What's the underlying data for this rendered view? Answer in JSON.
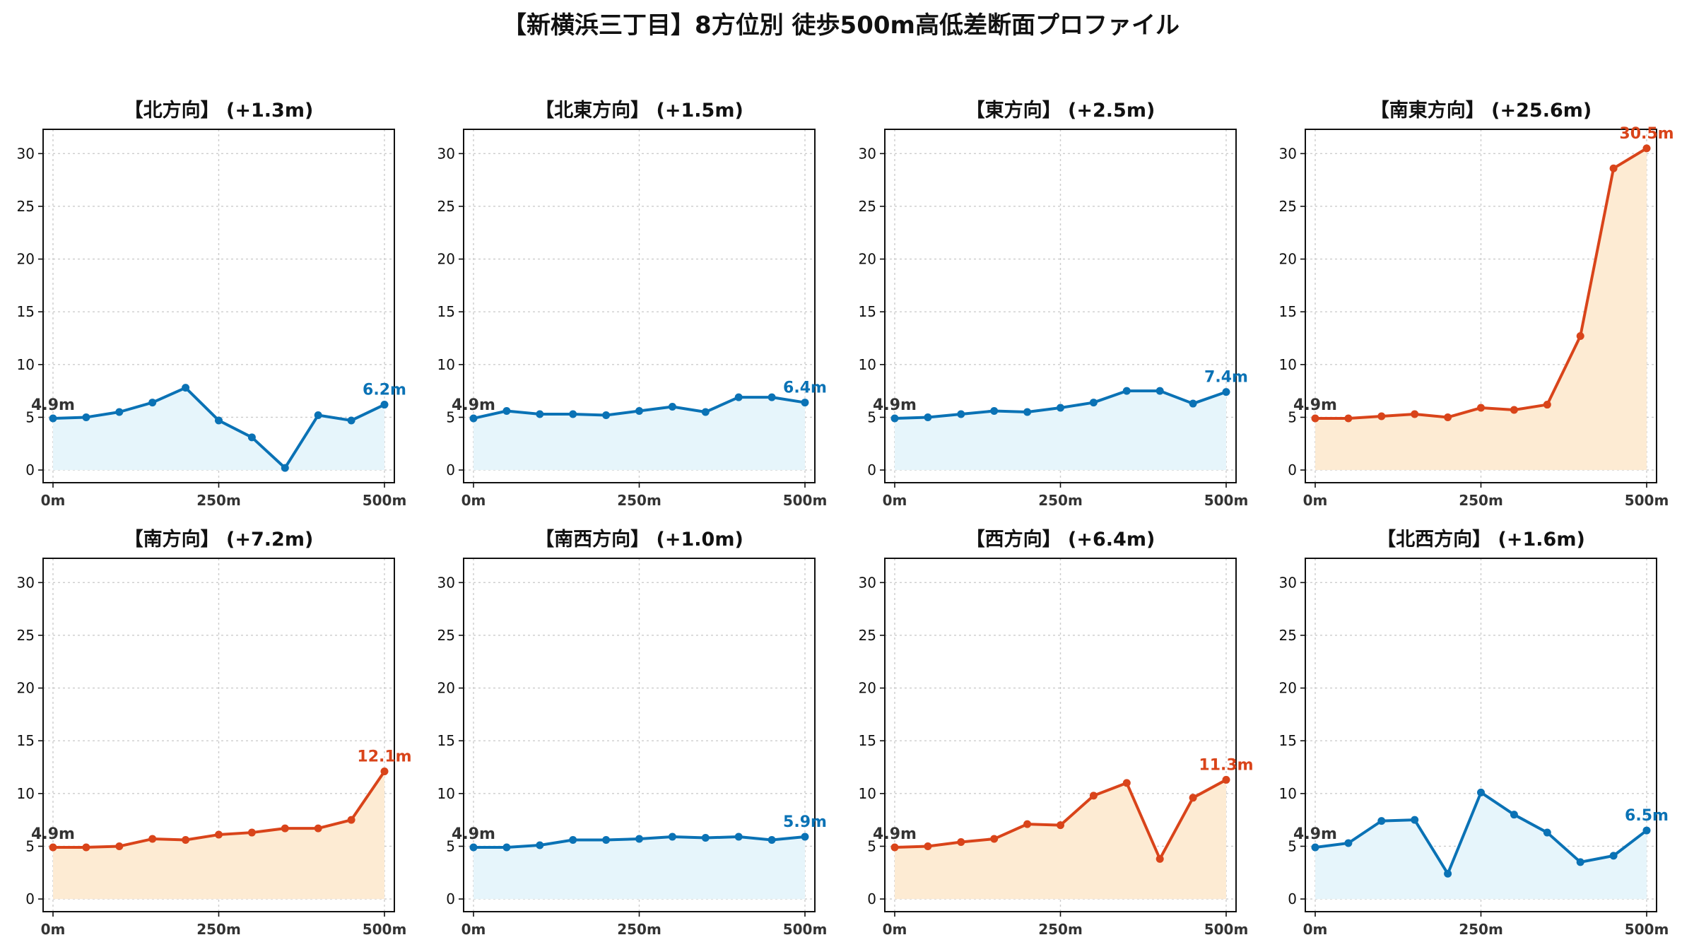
{
  "title": "【新横浜三丁目】8方位別 徒歩500m高低差断面プロファイル",
  "colors": {
    "blue": "#0a72b5",
    "red": "#d9441a",
    "blue_fill": "#e6f5fb",
    "red_fill": "#fdebd3"
  },
  "chart_data": [
    {
      "type": "area",
      "title": "【北方向】 (+1.3m)",
      "color": "blue",
      "x": [
        0,
        50,
        100,
        150,
        200,
        250,
        300,
        350,
        400,
        450,
        500
      ],
      "values": [
        4.9,
        5.0,
        5.5,
        6.4,
        7.8,
        4.7,
        3.1,
        0.2,
        5.2,
        4.7,
        6.2
      ],
      "start_label": "4.9m",
      "end_label": "6.2m",
      "xticks": [
        "0m",
        "250m",
        "500m"
      ],
      "yticks": [
        "0",
        "5",
        "10",
        "15",
        "20",
        "25",
        "30"
      ],
      "ylim": [
        -1.2,
        32.3
      ]
    },
    {
      "type": "area",
      "title": "【北東方向】 (+1.5m)",
      "color": "blue",
      "x": [
        0,
        50,
        100,
        150,
        200,
        250,
        300,
        350,
        400,
        450,
        500
      ],
      "values": [
        4.9,
        5.6,
        5.3,
        5.3,
        5.2,
        5.6,
        6.0,
        5.5,
        6.9,
        6.9,
        6.4
      ],
      "start_label": "4.9m",
      "end_label": "6.4m",
      "xticks": [
        "0m",
        "250m",
        "500m"
      ],
      "yticks": [
        "0",
        "5",
        "10",
        "15",
        "20",
        "25",
        "30"
      ],
      "ylim": [
        -1.2,
        32.3
      ]
    },
    {
      "type": "area",
      "title": "【東方向】 (+2.5m)",
      "color": "blue",
      "x": [
        0,
        50,
        100,
        150,
        200,
        250,
        300,
        350,
        400,
        450,
        500
      ],
      "values": [
        4.9,
        5.0,
        5.3,
        5.6,
        5.5,
        5.9,
        6.4,
        7.5,
        7.5,
        6.3,
        7.4
      ],
      "start_label": "4.9m",
      "end_label": "7.4m",
      "xticks": [
        "0m",
        "250m",
        "500m"
      ],
      "yticks": [
        "0",
        "5",
        "10",
        "15",
        "20",
        "25",
        "30"
      ],
      "ylim": [
        -1.2,
        32.3
      ]
    },
    {
      "type": "area",
      "title": "【南東方向】 (+25.6m)",
      "color": "red",
      "x": [
        0,
        50,
        100,
        150,
        200,
        250,
        300,
        350,
        400,
        450,
        500
      ],
      "values": [
        4.9,
        4.9,
        5.1,
        5.3,
        5.0,
        5.9,
        5.7,
        6.2,
        12.7,
        28.6,
        30.5
      ],
      "start_label": "4.9m",
      "end_label": "30.5m",
      "xticks": [
        "0m",
        "250m",
        "500m"
      ],
      "yticks": [
        "0",
        "5",
        "10",
        "15",
        "20",
        "25",
        "30"
      ],
      "ylim": [
        -1.2,
        32.3
      ]
    },
    {
      "type": "area",
      "title": "【南方向】 (+7.2m)",
      "color": "red",
      "x": [
        0,
        50,
        100,
        150,
        200,
        250,
        300,
        350,
        400,
        450,
        500
      ],
      "values": [
        4.9,
        4.9,
        5.0,
        5.7,
        5.6,
        6.1,
        6.3,
        6.7,
        6.7,
        7.5,
        12.1
      ],
      "start_label": "4.9m",
      "end_label": "12.1m",
      "xticks": [
        "0m",
        "250m",
        "500m"
      ],
      "yticks": [
        "0",
        "5",
        "10",
        "15",
        "20",
        "25",
        "30"
      ],
      "ylim": [
        -1.2,
        32.3
      ]
    },
    {
      "type": "area",
      "title": "【南西方向】 (+1.0m)",
      "color": "blue",
      "x": [
        0,
        50,
        100,
        150,
        200,
        250,
        300,
        350,
        400,
        450,
        500
      ],
      "values": [
        4.9,
        4.9,
        5.1,
        5.6,
        5.6,
        5.7,
        5.9,
        5.8,
        5.9,
        5.6,
        5.9
      ],
      "start_label": "4.9m",
      "end_label": "5.9m",
      "xticks": [
        "0m",
        "250m",
        "500m"
      ],
      "yticks": [
        "0",
        "5",
        "10",
        "15",
        "20",
        "25",
        "30"
      ],
      "ylim": [
        -1.2,
        32.3
      ]
    },
    {
      "type": "area",
      "title": "【西方向】 (+6.4m)",
      "color": "red",
      "x": [
        0,
        50,
        100,
        150,
        200,
        250,
        300,
        350,
        400,
        450,
        500
      ],
      "values": [
        4.9,
        5.0,
        5.4,
        5.7,
        7.1,
        7.0,
        9.8,
        11.0,
        3.8,
        9.6,
        11.3
      ],
      "start_label": "4.9m",
      "end_label": "11.3m",
      "xticks": [
        "0m",
        "250m",
        "500m"
      ],
      "yticks": [
        "0",
        "5",
        "10",
        "15",
        "20",
        "25",
        "30"
      ],
      "ylim": [
        -1.2,
        32.3
      ]
    },
    {
      "type": "area",
      "title": "【北西方向】 (+1.6m)",
      "color": "blue",
      "x": [
        0,
        50,
        100,
        150,
        200,
        250,
        300,
        350,
        400,
        450,
        500
      ],
      "values": [
        4.9,
        5.3,
        7.4,
        7.5,
        2.4,
        10.1,
        8.0,
        6.3,
        3.5,
        4.1,
        6.5
      ],
      "start_label": "4.9m",
      "end_label": "6.5m",
      "xticks": [
        "0m",
        "250m",
        "500m"
      ],
      "yticks": [
        "0",
        "5",
        "10",
        "15",
        "20",
        "25",
        "30"
      ],
      "ylim": [
        -1.2,
        32.3
      ]
    }
  ]
}
